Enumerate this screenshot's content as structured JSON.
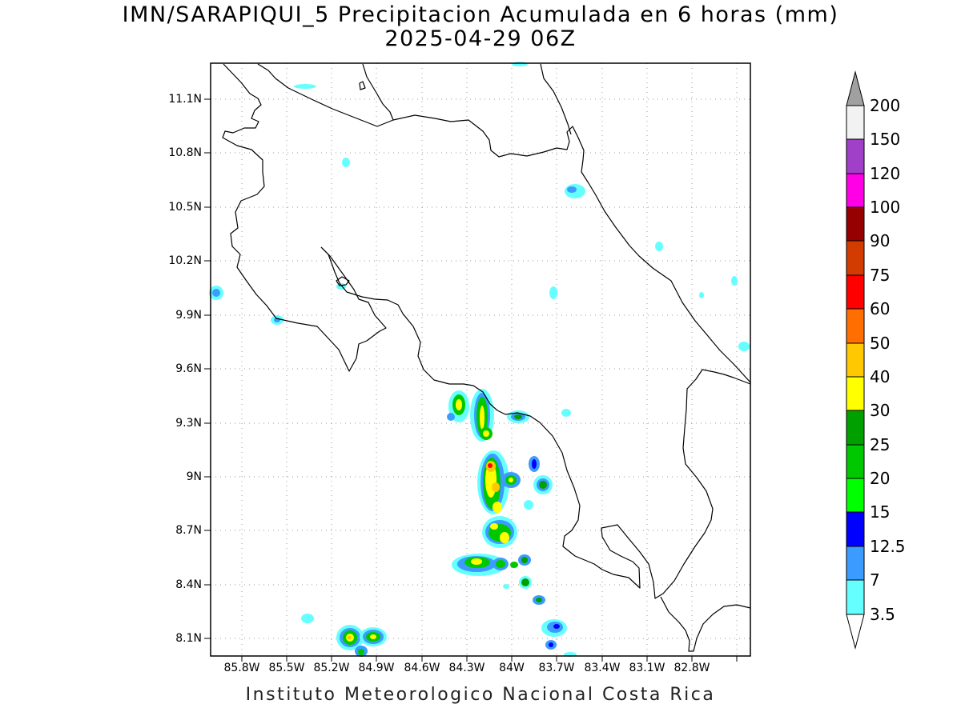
{
  "title_line1": "IMN/SARAPIQUI_5 Precipitacion Acumulada en 6 horas (mm)",
  "title_line2": "2025-04-29 06Z",
  "footer": "Instituto Meteorologico Nacional Costa Rica",
  "lat_labels": [
    "11.1N",
    "10.8N",
    "10.5N",
    "10.2N",
    "9.9N",
    "9.6N",
    "9.3N",
    "9N",
    "8.7N",
    "8.4N",
    "8.1N"
  ],
  "lon_labels": [
    "85.8W",
    "85.5W",
    "85.2W",
    "84.9W",
    "84.6W",
    "84.3W",
    "84W",
    "83.7W",
    "83.4W",
    "83.1W",
    "82.8W"
  ],
  "colorbar": {
    "levels": [
      "200",
      "150",
      "120",
      "100",
      "90",
      "75",
      "60",
      "50",
      "40",
      "30",
      "25",
      "20",
      "15",
      "12.5",
      "7",
      "3.5"
    ],
    "colors": {
      "gt200": "#a0a0a0",
      "150_200": "#f2f2f2",
      "120_150": "#a040c8",
      "100_120": "#ff00e6",
      "90_100": "#960000",
      "75_90": "#d23c00",
      "60_75": "#ff0000",
      "50_60": "#ff6e00",
      "40_50": "#ffc800",
      "30_40": "#ffff00",
      "25_30": "#00a000",
      "20_25": "#00c800",
      "15_20": "#00ff00",
      "12.5_15": "#0000ff",
      "7_12.5": "#3c9bff",
      "3.5_7": "#66ffff"
    }
  }
}
